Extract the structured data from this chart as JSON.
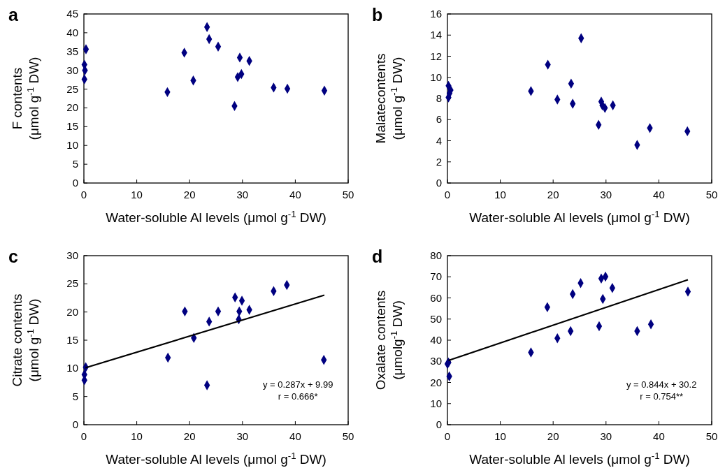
{
  "chart_data": [
    {
      "type": "scatter",
      "title": "a",
      "xlabel": "Water-soluble Al levels (μmol g$^{-1}$ DW)",
      "ylabel": "F contents\n(μmol g$^{-1}$ DW)",
      "xlim": [
        0,
        50
      ],
      "xticks": [
        0,
        10,
        20,
        30,
        40,
        50
      ],
      "ylim": [
        0,
        45
      ],
      "yticks": [
        0,
        5,
        10,
        15,
        20,
        25,
        30,
        35,
        40,
        45
      ],
      "series": [
        {
          "color": "#000080",
          "marker": "diamond",
          "x": [
            0.1,
            0.1,
            0.2,
            0.4,
            15.8,
            19.0,
            20.7,
            23.3,
            23.7,
            25.4,
            28.5,
            29.1,
            29.5,
            29.8,
            31.3,
            35.9,
            38.5,
            45.5
          ],
          "values": [
            27.6,
            31.5,
            30.0,
            35.6,
            24.2,
            34.7,
            27.3,
            41.5,
            38.3,
            36.3,
            20.5,
            28.2,
            33.4,
            29.0,
            32.5,
            25.4,
            25.1,
            24.6
          ]
        }
      ]
    },
    {
      "type": "scatter",
      "title": "b",
      "xlabel": "Water-soluble Al levels (μmol g$^{-1}$ DW)",
      "ylabel": "Malatecontents\n(μmol g$^{-1}$ DW)",
      "xlim": [
        0,
        50
      ],
      "xticks": [
        0,
        10,
        20,
        30,
        40,
        50
      ],
      "ylim": [
        0,
        16
      ],
      "yticks": [
        0,
        2,
        4,
        6,
        8,
        10,
        12,
        14,
        16
      ],
      "series": [
        {
          "color": "#000080",
          "marker": "diamond",
          "x": [
            0.2,
            0.6,
            0.4,
            0.2,
            15.8,
            19.0,
            20.8,
            23.4,
            23.7,
            25.3,
            28.6,
            29.1,
            29.3,
            29.8,
            31.3,
            35.9,
            38.3,
            45.4
          ],
          "values": [
            9.2,
            8.8,
            8.5,
            8.1,
            8.7,
            11.2,
            7.9,
            9.4,
            7.5,
            13.7,
            5.5,
            7.7,
            7.35,
            7.1,
            7.35,
            3.6,
            5.2,
            4.9
          ]
        }
      ]
    },
    {
      "type": "scatter",
      "title": "c",
      "xlabel": "Water-soluble Al levels (μmol g$^{-1}$ DW)",
      "ylabel": "Citrate contents\n(μmol g$^{-1}$ DW)",
      "xlim": [
        0,
        50
      ],
      "xticks": [
        0,
        10,
        20,
        30,
        40,
        50
      ],
      "ylim": [
        0,
        30
      ],
      "yticks": [
        0,
        5,
        10,
        15,
        20,
        25,
        30
      ],
      "annotations": [
        "y = 0.287x + 9.99",
        "r = 0.666*"
      ],
      "series": [
        {
          "color": "#000080",
          "marker": "diamond",
          "x": [
            0.1,
            0.1,
            0.35,
            15.9,
            19.1,
            20.8,
            23.3,
            23.7,
            25.4,
            28.6,
            29.3,
            29.4,
            29.9,
            31.3,
            35.9,
            38.4,
            45.4
          ],
          "values": [
            7.9,
            8.9,
            10.2,
            11.9,
            20.1,
            15.4,
            7.0,
            18.3,
            20.1,
            22.6,
            18.7,
            20.1,
            22.0,
            20.4,
            23.7,
            24.8,
            11.5
          ]
        },
        {
          "type": "line",
          "color": "#000000",
          "marker": "none",
          "line_style": "solid",
          "x": [
            0.3,
            45.5
          ],
          "values": [
            10.1,
            23.0
          ]
        }
      ]
    },
    {
      "type": "scatter",
      "title": "d",
      "xlabel": "Water-soluble Al levels (μmol g$^{-1}$ DW)",
      "ylabel": "Oxalate contents\n(μmolg$^{-1}$ DW)",
      "xlim": [
        0,
        50
      ],
      "xticks": [
        0,
        10,
        20,
        30,
        40,
        50
      ],
      "ylim": [
        0,
        80
      ],
      "yticks": [
        0,
        10,
        20,
        30,
        40,
        50,
        60,
        70,
        80
      ],
      "annotations": [
        "y = 0.844x + 30.2",
        "r = 0.754**"
      ],
      "series": [
        {
          "color": "#000080",
          "marker": "diamond",
          "x": [
            0.0,
            0.2,
            0.35,
            15.8,
            18.9,
            20.8,
            23.3,
            23.7,
            25.2,
            28.7,
            29.1,
            29.4,
            29.9,
            31.2,
            35.9,
            38.5,
            45.5
          ],
          "values": [
            28.8,
            29.4,
            22.9,
            34.2,
            55.6,
            40.9,
            44.3,
            61.8,
            67.0,
            46.6,
            69.2,
            59.5,
            70.1,
            64.7,
            44.3,
            47.5,
            63.0
          ]
        },
        {
          "type": "line",
          "color": "#000000",
          "marker": "none",
          "line_style": "solid",
          "x": [
            0.2,
            45.5
          ],
          "values": [
            30.4,
            68.6
          ]
        }
      ]
    }
  ]
}
